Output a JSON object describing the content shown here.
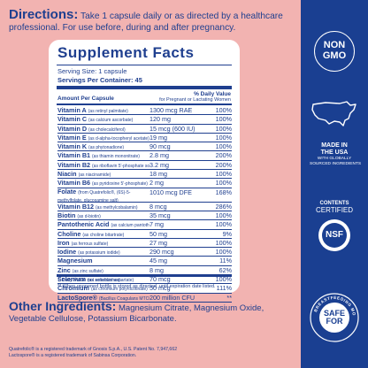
{
  "directions": {
    "heading": "Directions:",
    "text": "Take 1 capsule daily or as directed by a healthcare professional. For use before, during and after pregnancy."
  },
  "facts": {
    "title": "Supplement Facts",
    "serving_size": "Serving Size: 1 capsule",
    "servings_per_container": "Servings Per Container: 45",
    "col_amount": "Amount Per Capsule",
    "col_dv": "% Daily Value",
    "col_dv_sub": "for Pregnant or Lactating Women",
    "rows": [
      {
        "name": "Vitamin A",
        "sub": "(as retinyl palmitate)",
        "amount": "1300 mcg RAE",
        "dv": "100%"
      },
      {
        "name": "Vitamin C",
        "sub": "(as calcium ascorbate)",
        "amount": "120 mg",
        "dv": "100%"
      },
      {
        "name": "Vitamin D",
        "sub": "(as cholecalciferol)",
        "amount": "15 mcg (600 IU)",
        "dv": "100%"
      },
      {
        "name": "Vitamin E",
        "sub": "(as d-alpha-tocopheryl acetate)",
        "amount": "19 mg",
        "dv": "100%"
      },
      {
        "name": "Vitamin K",
        "sub": "(as phytonadione)",
        "amount": "90 mcg",
        "dv": "100%"
      },
      {
        "name": "Vitamin B1",
        "sub": "(as thiamin mononitrate)",
        "amount": "2.8 mg",
        "dv": "200%"
      },
      {
        "name": "Vitamin B2",
        "sub": "(as riboflavin 5'-phosphate sodium)",
        "amount": "3.2 mg",
        "dv": "200%"
      },
      {
        "name": "Niacin",
        "sub": "(as niacinamide)",
        "amount": "18 mg",
        "dv": "100%"
      },
      {
        "name": "Vitamin B6",
        "sub": "(as pyridoxine 5'-phosphate)",
        "amount": "2 mg",
        "dv": "100%"
      },
      {
        "name": "Folate",
        "sub": "(from Quatrefolic®, (6S)-5-methylfolate, glucosamine salt)",
        "amount": "1010 mcg DFE",
        "dv": "168%",
        "tall": true
      },
      {
        "name": "Vitamin B12",
        "sub": "(as methylcobalamin)",
        "amount": "8 mcg",
        "dv": "286%"
      },
      {
        "name": "Biotin",
        "sub": "(as d-biotin)",
        "amount": "35 mcg",
        "dv": "100%"
      },
      {
        "name": "Pantothenic Acid",
        "sub": "(as calcium pantothenate)",
        "amount": "7 mg",
        "dv": "100%"
      },
      {
        "name": "Choline",
        "sub": "(as choline bitartrate)",
        "amount": "50 mg",
        "dv": "9%"
      },
      {
        "name": "Iron",
        "sub": "(as ferrous sulfate)",
        "amount": "27 mg",
        "dv": "100%"
      },
      {
        "name": "Iodine",
        "sub": "(as potassium iodide)",
        "amount": "290 mcg",
        "dv": "100%"
      },
      {
        "name": "Magnesium",
        "sub": "",
        "amount": "45 mg",
        "dv": "11%"
      },
      {
        "name": "Zinc",
        "sub": "(as zinc sulfate)",
        "amount": "8 mg",
        "dv": "62%"
      },
      {
        "name": "Selenium",
        "sub": "(as selenium aspartate)",
        "amount": "70 mcg",
        "dv": "100%"
      },
      {
        "name": "Chromium",
        "sub": "(as chromium polynicotinate)",
        "amount": "50 mcg",
        "dv": "111%"
      },
      {
        "name": "LactoSpore®",
        "sub": "(Bacillus Coagulans MTCC 5856)",
        "amount": "200 million CFU",
        "dv": "**"
      }
    ],
    "footnote1": "† Daily Value not established.",
    "footnote2": "** When unopened bottle is stored as directed, until expiration date listed."
  },
  "other": {
    "heading": "Other Ingredients:",
    "text": "Magnesium Citrate, Magnesium Oxide, Vegetable Cellulose, Potassium Bicarbonate."
  },
  "trademarks": {
    "line1": "Quatrefolic® is a registered trademark of Gnosis S.p.A., U.S. Patent No. 7,947,662",
    "line2": "Lactospore® is a registered trademark of Sabinsa Corporation."
  },
  "badges": {
    "nongmo_line1": "NON",
    "nongmo_line2": "GMO",
    "usa_line1": "MADE IN",
    "usa_line2": "THE USA",
    "usa_sub1": "WITH GLOBALLY",
    "usa_sub2": "SOURCED INGREDIENTS",
    "nsf_line1": "CONTENTS",
    "nsf_line2": "CERTIFIED",
    "nsf_mark": "NSF",
    "bf_ring": "BREASTFEEDING MOMS",
    "bf_line1": "SAFE",
    "bf_line2": "FOR"
  },
  "colors": {
    "background": "#f2b3b1",
    "brand_blue": "#1a3f91",
    "panel": "#ffffff"
  }
}
